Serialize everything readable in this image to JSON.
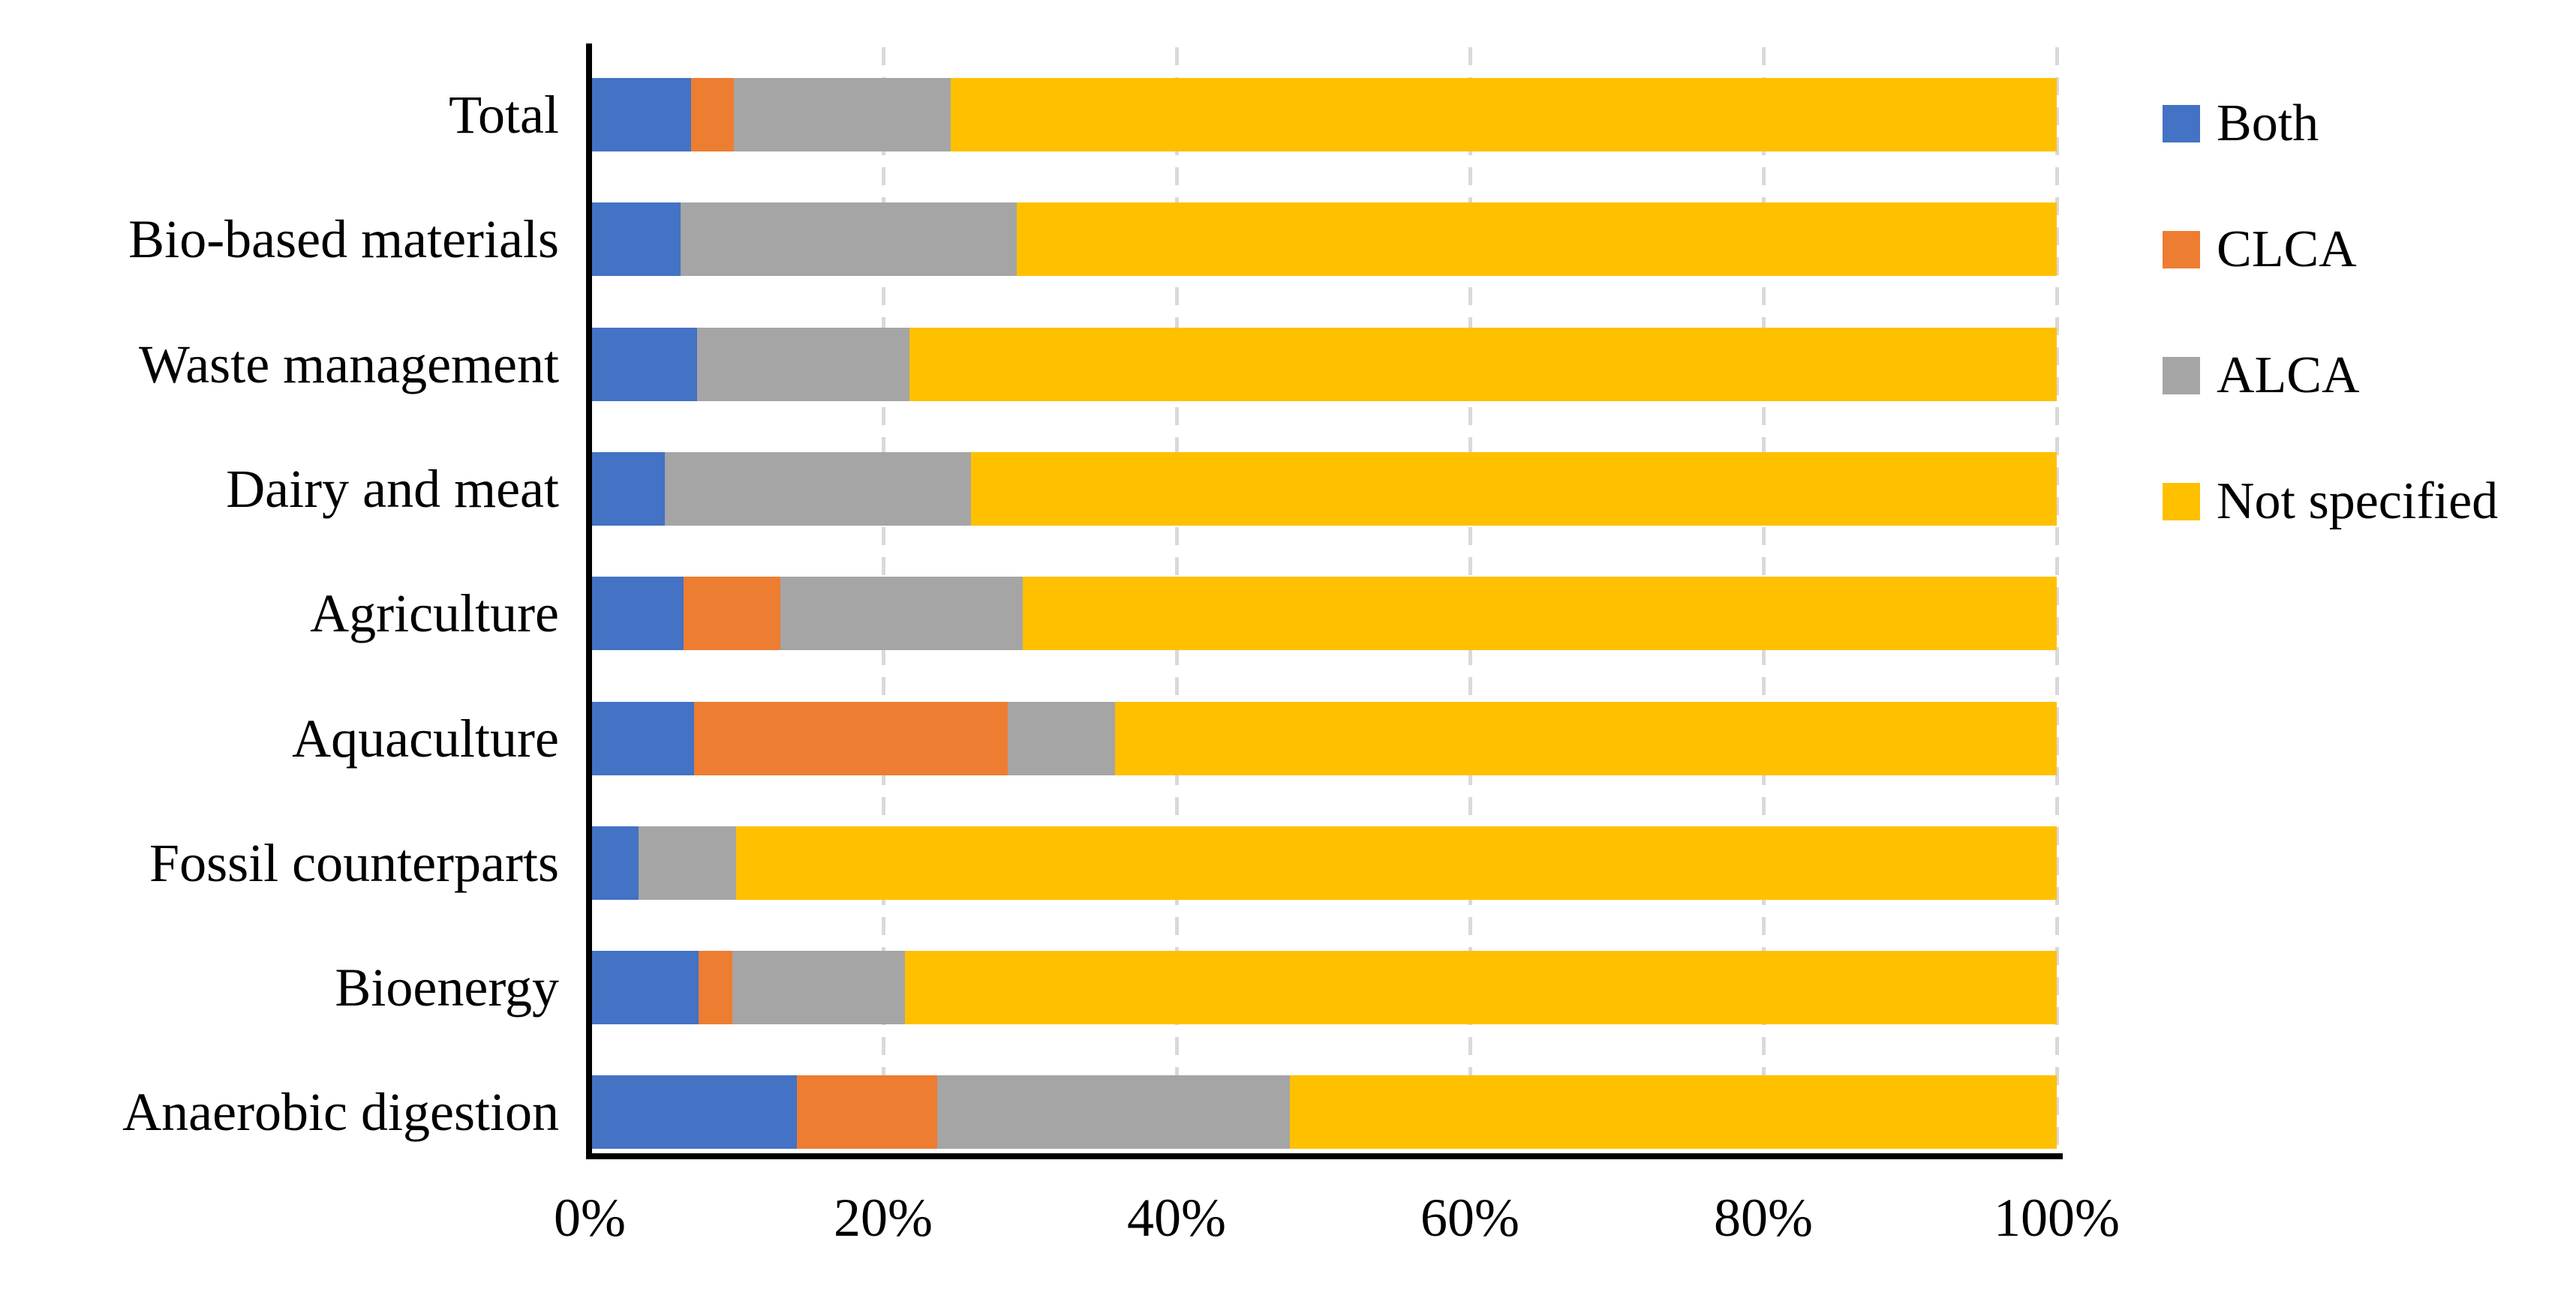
{
  "chart_data": {
    "type": "bar",
    "subtype": "horizontal-stacked-100",
    "unit": "percent",
    "categories": [
      "Total",
      "Bio-based materials",
      "Waste management",
      "Dairy and meat",
      "Agriculture",
      "Aquaculture",
      "Fossil counterparts",
      "Bioenergy",
      "Anaerobic digestion"
    ],
    "series": [
      {
        "name": "Both",
        "color": "#4472C4",
        "values": [
          6.9,
          6.2,
          7.3,
          5.1,
          6.4,
          7.1,
          3.3,
          7.4,
          14.1
        ]
      },
      {
        "name": "CLCA",
        "color": "#ED7D31",
        "values": [
          2.9,
          0.0,
          0.0,
          0.0,
          6.6,
          21.4,
          0.0,
          2.3,
          9.6
        ]
      },
      {
        "name": "ALCA",
        "color": "#A5A5A5",
        "values": [
          14.8,
          22.9,
          14.5,
          20.9,
          16.5,
          7.3,
          6.7,
          11.8,
          24.0
        ]
      },
      {
        "name": "Not specified",
        "color": "#FFC000",
        "values": [
          75.4,
          70.9,
          78.2,
          74.0,
          70.5,
          64.2,
          90.0,
          78.5,
          52.3
        ]
      }
    ],
    "x_axis": {
      "min": 0,
      "max": 100,
      "tick_interval": 20,
      "tick_labels": [
        "0%",
        "20%",
        "40%",
        "60%",
        "80%",
        "100%"
      ]
    },
    "legend": {
      "position": "right",
      "entries": [
        "Both",
        "CLCA",
        "ALCA",
        "Not specified"
      ]
    },
    "grid": {
      "show": true,
      "color": "#D9D9D9",
      "style": "dashed"
    },
    "axis_color": "#000000",
    "title": ""
  }
}
